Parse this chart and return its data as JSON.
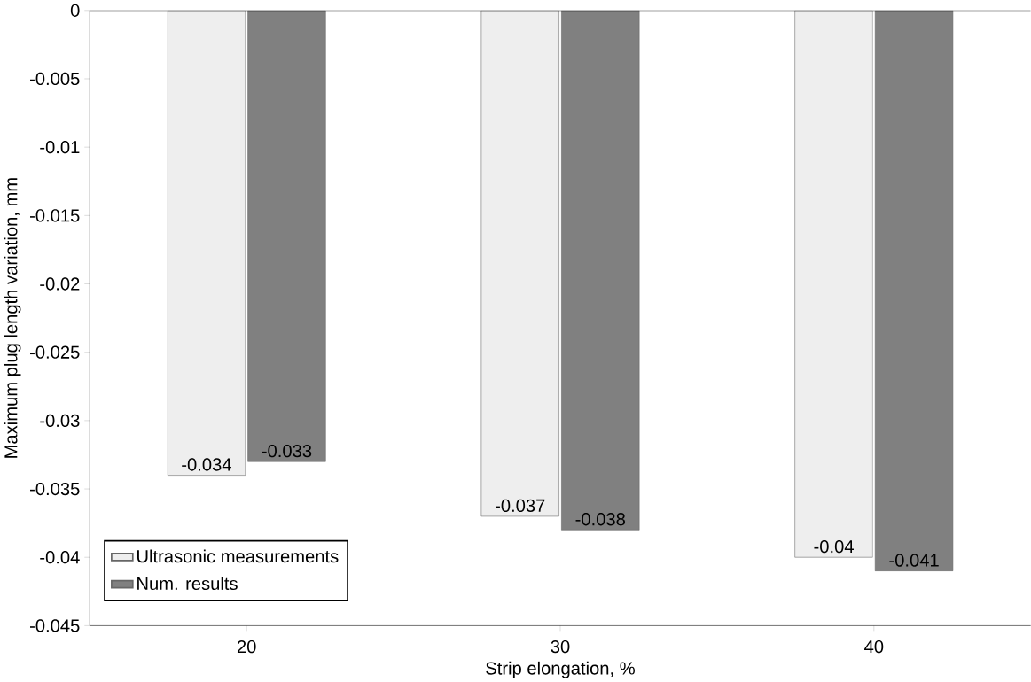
{
  "chart_data": {
    "type": "bar",
    "xlabel": "Strip elongation, %",
    "ylabel": "Maximum plug length variation, mm",
    "categories": [
      "20",
      "30",
      "40"
    ],
    "series": [
      {
        "name": "Ultrasonic measurements",
        "color": "#eeeeee",
        "values": [
          -0.034,
          -0.037,
          -0.04
        ],
        "value_labels": [
          "-0.034",
          "-0.037",
          "-0.04"
        ]
      },
      {
        "name": "Num. results",
        "color": "#808080",
        "values": [
          -0.033,
          -0.038,
          -0.041
        ],
        "value_labels": [
          "-0.033",
          "-0.038",
          "-0.041"
        ]
      }
    ],
    "ylim": [
      -0.045,
      0
    ],
    "yticks": [
      0,
      -0.005,
      -0.01,
      -0.015,
      -0.02,
      -0.025,
      -0.03,
      -0.035,
      -0.04,
      -0.045
    ],
    "grid": false,
    "legend": "bottom left"
  }
}
